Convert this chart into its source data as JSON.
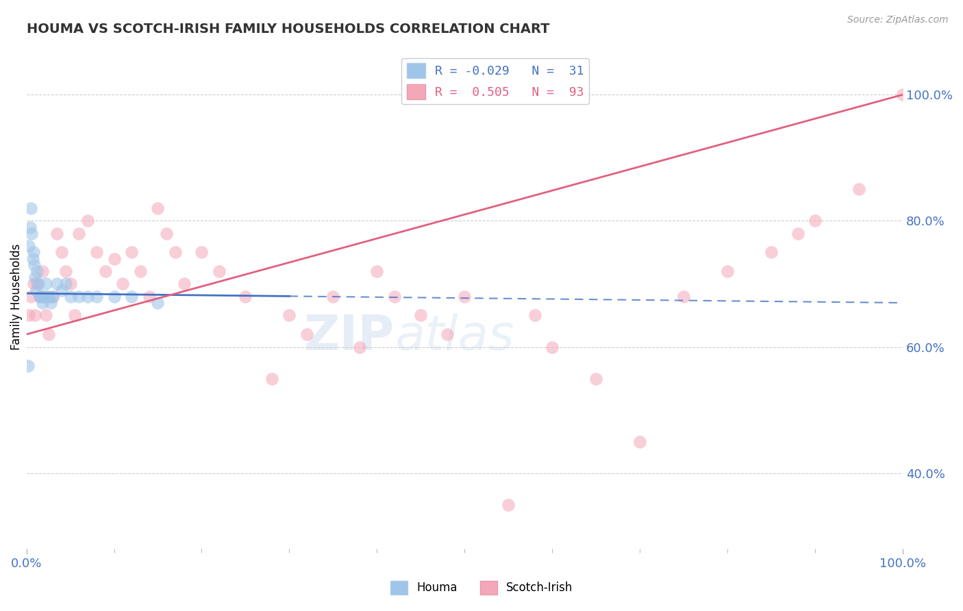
{
  "title": "HOUMA VS SCOTCH-IRISH FAMILY HOUSEHOLDS CORRELATION CHART",
  "source_text": "Source: ZipAtlas.com",
  "ylabel": "Family Households",
  "xlim": [
    0,
    100
  ],
  "ylim": [
    28,
    108
  ],
  "ytick_vals": [
    40,
    60,
    80,
    100
  ],
  "ytick_labels": [
    "40.0%",
    "60.0%",
    "80.0%",
    "100.0%"
  ],
  "xtick_positions": [
    0,
    100
  ],
  "xtick_labels": [
    "0.0%",
    "100.0%"
  ],
  "houma_color": "#9fc5e8",
  "scotch_color": "#f4a7b9",
  "houma_line_color": "#4472c4",
  "scotch_line_color": "#e06080",
  "watermark": "ZIPatlas",
  "background_color": "#ffffff",
  "tick_color": "#4472c4",
  "grid_color": "#cccccc",
  "houma_x": [
    0.2,
    0.3,
    0.4,
    0.5,
    0.6,
    0.7,
    0.8,
    0.9,
    1.0,
    1.1,
    1.2,
    1.4,
    1.5,
    1.6,
    1.8,
    2.0,
    2.2,
    2.4,
    2.6,
    2.8,
    3.0,
    3.5,
    4.0,
    4.5,
    5.0,
    6.0,
    7.0,
    8.0,
    10.0,
    12.0,
    15.0
  ],
  "houma_y": [
    57,
    76,
    79,
    82,
    78,
    74,
    75,
    73,
    71,
    69,
    72,
    70,
    68,
    68,
    67,
    68,
    70,
    68,
    68,
    67,
    68,
    70,
    69,
    70,
    68,
    68,
    68,
    68,
    68,
    68,
    67
  ],
  "scotch_x": [
    0.3,
    0.5,
    0.8,
    1.0,
    1.2,
    1.5,
    1.8,
    2.0,
    2.2,
    2.5,
    3.0,
    3.5,
    4.0,
    4.5,
    5.0,
    5.5,
    6.0,
    7.0,
    8.0,
    9.0,
    10.0,
    11.0,
    12.0,
    13.0,
    14.0,
    15.0,
    16.0,
    17.0,
    18.0,
    20.0,
    22.0,
    25.0,
    28.0,
    30.0,
    32.0,
    35.0,
    38.0,
    40.0,
    42.0,
    45.0,
    48.0,
    50.0,
    55.0,
    58.0,
    60.0,
    65.0,
    70.0,
    75.0,
    80.0,
    85.0,
    88.0,
    90.0,
    95.0,
    100.0
  ],
  "scotch_y": [
    65,
    68,
    70,
    65,
    70,
    68,
    72,
    68,
    65,
    62,
    68,
    78,
    75,
    72,
    70,
    65,
    78,
    80,
    75,
    72,
    74,
    70,
    75,
    72,
    68,
    82,
    78,
    75,
    70,
    75,
    72,
    68,
    55,
    65,
    62,
    68,
    60,
    72,
    68,
    65,
    62,
    68,
    35,
    65,
    60,
    55,
    45,
    68,
    72,
    75,
    78,
    80,
    85,
    100
  ],
  "houma_line_x0": 0,
  "houma_line_y0": 68.5,
  "houma_line_x1": 100,
  "houma_line_y1": 67.0,
  "houma_solid_end_x": 30,
  "scotch_line_x0": 0,
  "scotch_line_y0": 62,
  "scotch_line_x1": 100,
  "scotch_line_y1": 100
}
